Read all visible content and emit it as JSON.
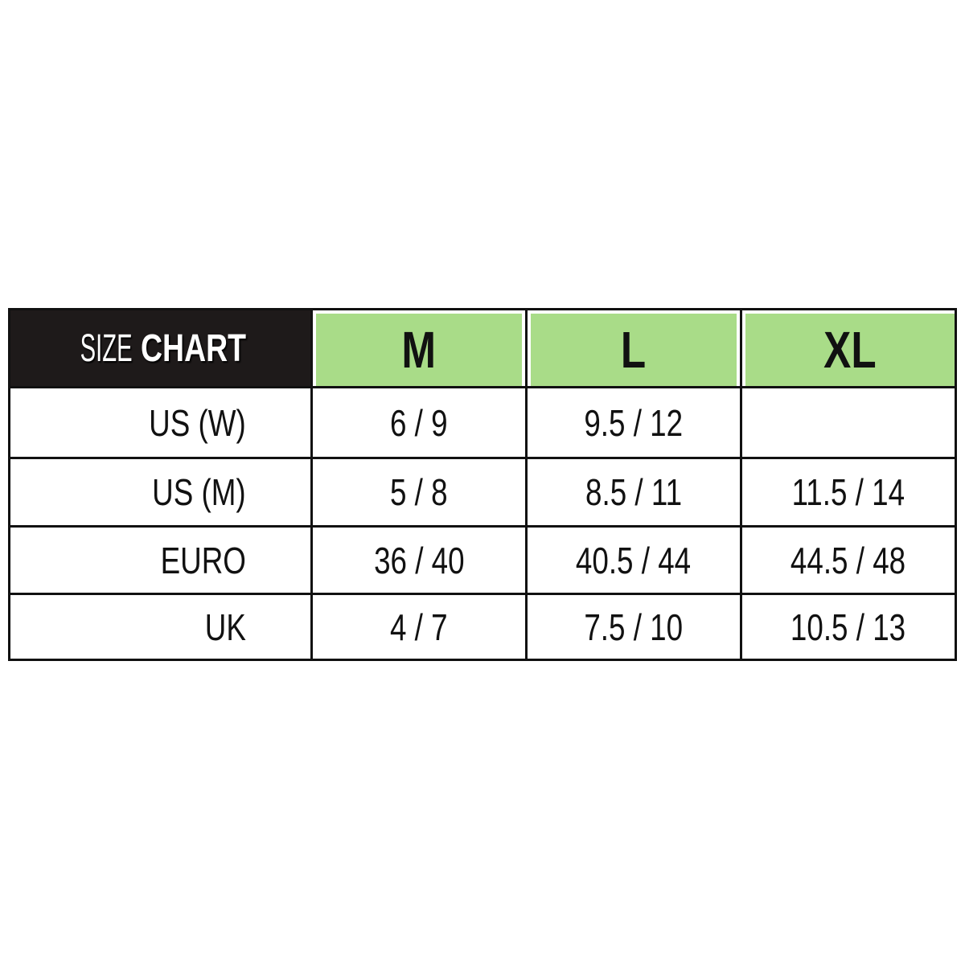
{
  "title": {
    "light": "SIZE",
    "bold": "CHART"
  },
  "colors": {
    "header_bg": "#1e1a1a",
    "size_header_bg": "#a9dc88",
    "border": "#111111"
  },
  "sizes": [
    "M",
    "L",
    "XL"
  ],
  "rows": [
    {
      "label": "US (W)",
      "values": [
        "6 / 9",
        "9.5 / 12",
        ""
      ]
    },
    {
      "label": "US (M)",
      "values": [
        "5 / 8",
        "8.5 / 11",
        "11.5 / 14"
      ]
    },
    {
      "label": "EURO",
      "values": [
        "36 / 40",
        "40.5 / 44",
        "44.5 / 48"
      ]
    },
    {
      "label": "UK",
      "values": [
        "4 / 7",
        "7.5 / 10",
        "10.5 / 13"
      ]
    }
  ]
}
